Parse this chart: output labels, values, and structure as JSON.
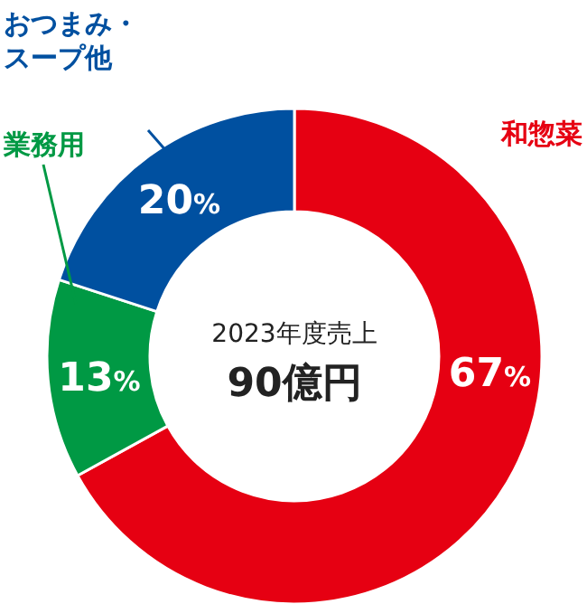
{
  "chart_data": {
    "type": "donut",
    "title": "2023年度売上",
    "subtitle": "90億円",
    "categories": [
      "和惣菜",
      "業務用",
      "おつまみ・スープ他"
    ],
    "values": [
      67,
      13,
      20
    ],
    "colors": [
      "#e60012",
      "#009944",
      "#0050a0"
    ],
    "value_labels": [
      "67%",
      "13%",
      "20%"
    ]
  }
}
